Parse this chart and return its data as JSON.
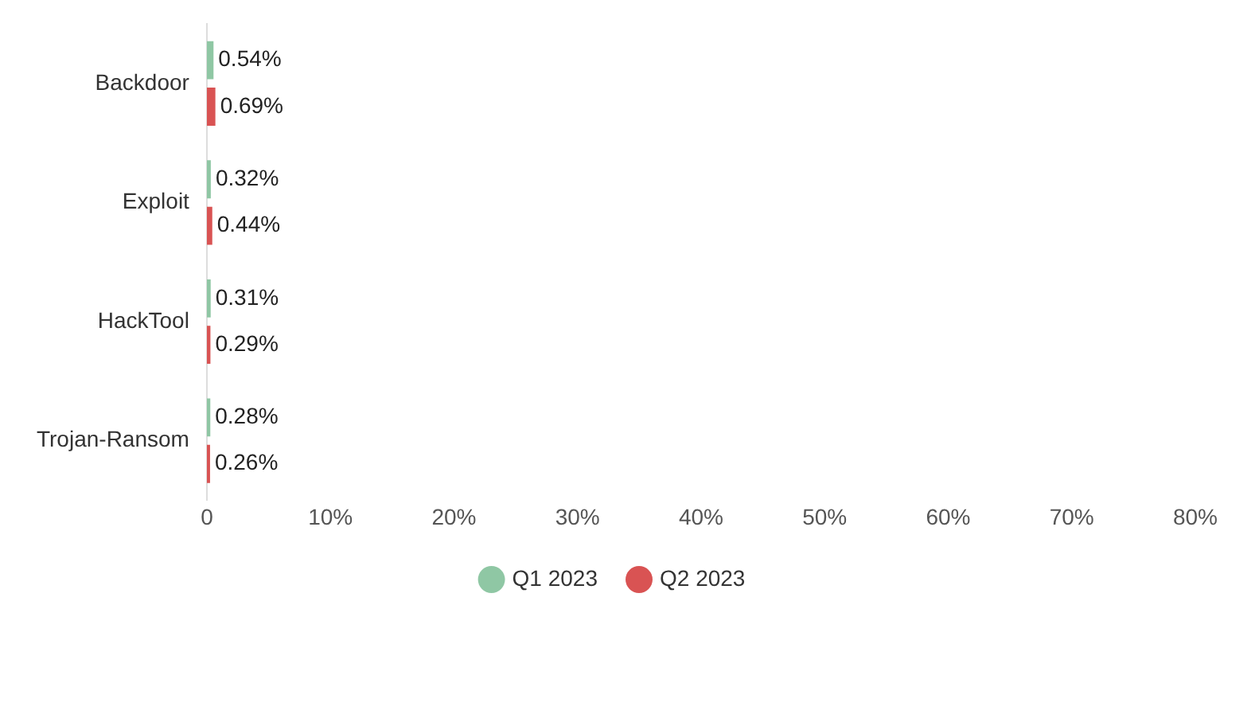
{
  "chart_data": {
    "type": "bar",
    "orientation": "horizontal",
    "categories": [
      "Backdoor",
      "Exploit",
      "HackTool",
      "Trojan-Ransom"
    ],
    "series": [
      {
        "name": "Q1 2023",
        "color": "#8fc7a4",
        "values": [
          0.54,
          0.32,
          0.31,
          0.28
        ],
        "value_labels": [
          "0.54%",
          "0.32%",
          "0.31%",
          "0.28%"
        ]
      },
      {
        "name": "Q2 2023",
        "color": "#d95353",
        "values": [
          0.69,
          0.44,
          0.29,
          0.26
        ],
        "value_labels": [
          "0.69%",
          "0.44%",
          "0.29%",
          "0.26%"
        ]
      }
    ],
    "xlim": [
      0,
      80
    ],
    "xticks": [
      {
        "value": 0,
        "label": "0"
      },
      {
        "value": 10,
        "label": "10%"
      },
      {
        "value": 20,
        "label": "20%"
      },
      {
        "value": 30,
        "label": "30%"
      },
      {
        "value": 40,
        "label": "40%"
      },
      {
        "value": 50,
        "label": "50%"
      },
      {
        "value": 60,
        "label": "60%"
      },
      {
        "value": 70,
        "label": "70%"
      },
      {
        "value": 80,
        "label": "80%"
      }
    ],
    "legend": "bottom"
  }
}
